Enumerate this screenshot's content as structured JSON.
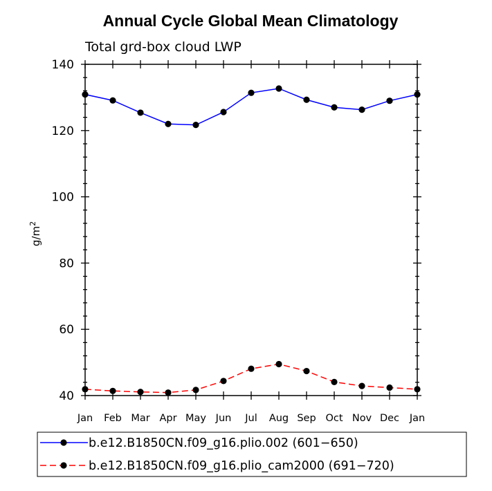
{
  "chart_data": {
    "type": "line",
    "title": "Annual Cycle Global Mean Climatology",
    "subtitle": "Total grd-box cloud LWP",
    "xlabel": "",
    "ylabel": "g/m",
    "ylabel_sup": "2",
    "categories": [
      "Jan",
      "Feb",
      "Mar",
      "Apr",
      "May",
      "Jun",
      "Jul",
      "Aug",
      "Sep",
      "Oct",
      "Nov",
      "Dec",
      "Jan"
    ],
    "ylim": [
      40,
      140
    ],
    "yticks": [
      40,
      60,
      80,
      100,
      120,
      140
    ],
    "yticks_minor_step": 4,
    "grid": false,
    "legend_position": "bottom-left",
    "series": [
      {
        "name": "b.e12.B1850CN.f09_g16.plio.002 (601−650)",
        "color": "#0000ff",
        "dash": "solid",
        "marker": "filled-circle",
        "values": [
          130.9,
          129.1,
          125.4,
          122.0,
          121.7,
          125.6,
          131.4,
          132.7,
          129.3,
          127.0,
          126.3,
          129.0,
          130.9
        ]
      },
      {
        "name": "b.e12.B1850CN.f09_g16.plio_cam2000 (691−720)",
        "color": "#ff0000",
        "dash": "dashed",
        "marker": "filled-circle",
        "values": [
          41.9,
          41.4,
          41.1,
          40.9,
          41.7,
          44.4,
          48.1,
          49.5,
          47.4,
          44.1,
          42.9,
          42.4,
          41.9
        ]
      }
    ]
  }
}
